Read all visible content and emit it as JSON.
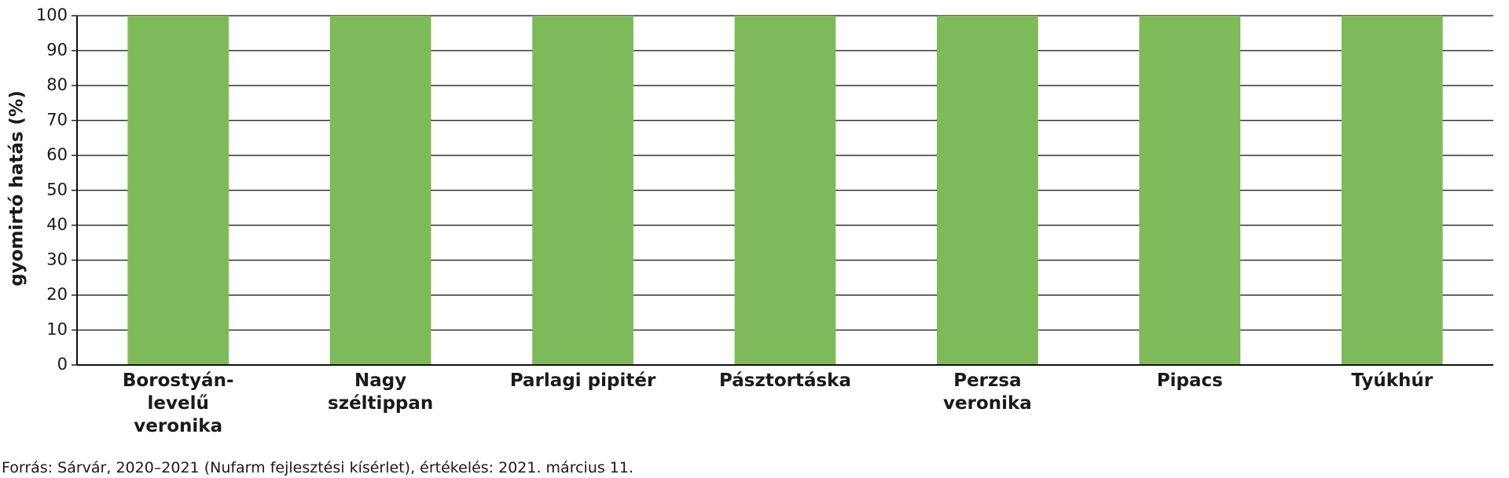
{
  "chart_data": {
    "type": "bar",
    "y_label": "gyomirtó hatás (%)",
    "categories": [
      "Borostyán-\nlevelű\nveronika",
      "Nagy\nszéltippan",
      "Parlagi pipitér",
      "Pásztortáska",
      "Perzsa\nveronika",
      "Pipacs",
      "Tyúkhúr"
    ],
    "values": [
      100,
      100,
      100,
      100,
      100,
      100,
      100
    ],
    "color": "#7fba5a",
    "ylim": [
      0,
      100
    ],
    "yticks": [
      0,
      10,
      20,
      30,
      40,
      50,
      60,
      70,
      80,
      90,
      100
    ],
    "grid": true,
    "source": "Forrás: Sárvár, 2020–2021 (Nufarm fejlesztési kísérlet), értékelés: 2021. március 11."
  }
}
